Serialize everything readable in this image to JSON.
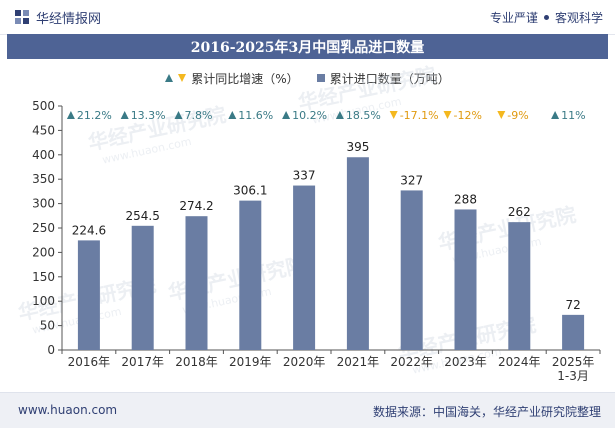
{
  "header": {
    "brand": "华经情报网",
    "slogan_left": "专业严谨",
    "slogan_right": "客观科学"
  },
  "title": "2016-2025年3月中国乳品进口数量",
  "legend": {
    "growth_label": "累计同比增速（%）",
    "volume_label": "累计进口数量（万吨）"
  },
  "watermark": {
    "brand": "华经产业研究院",
    "url": "www.huaon.com"
  },
  "footer": {
    "website": "www.huaon.com",
    "source": "数据来源：中国海关，华经产业研究院整理"
  },
  "colors": {
    "bar": "#6a7da3",
    "up": "#3a7a86",
    "down": "#f4b81f",
    "title_bg": "#4e6395"
  },
  "chart_data": {
    "type": "bar",
    "categories": [
      "2016年",
      "2017年",
      "2018年",
      "2019年",
      "2020年",
      "2021年",
      "2022年",
      "2023年",
      "2024年",
      "2025年\n1-3月"
    ],
    "series": [
      {
        "name": "累计进口数量（万吨）",
        "values": [
          224.6,
          254.5,
          274.2,
          306.1,
          337,
          395,
          327,
          288,
          262,
          72
        ],
        "labels": [
          "224.6",
          "254.5",
          "274.2",
          "306.1",
          "337",
          "395",
          "327",
          "288",
          "262",
          "72"
        ]
      },
      {
        "name": "累计同比增速（%）",
        "values": [
          21.2,
          13.3,
          7.8,
          11.6,
          10.2,
          18.5,
          -17.1,
          -12,
          -9,
          11
        ],
        "labels": [
          "21.2%",
          "13.3%",
          "7.8%",
          "11.6%",
          "10.2%",
          "18.5%",
          "-17.1%",
          "-12%",
          "-9%",
          "11%"
        ]
      }
    ],
    "ylim": [
      0,
      500
    ],
    "yticks": [
      0,
      50,
      100,
      150,
      200,
      250,
      300,
      350,
      400,
      450,
      500
    ],
    "grid": false
  }
}
